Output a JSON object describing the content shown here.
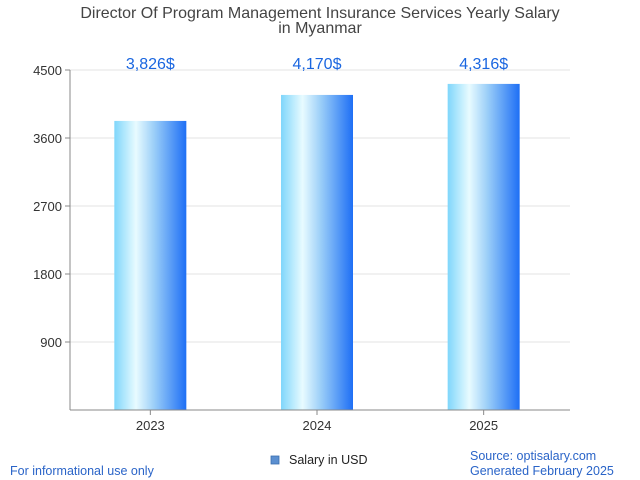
{
  "chart_data": {
    "type": "bar",
    "title_lines": [
      "Director Of Program Management Insurance Services Yearly Salary",
      "in Myanmar"
    ],
    "categories": [
      "2023",
      "2024",
      "2025"
    ],
    "series": [
      {
        "name": "Salary in USD",
        "values": [
          3826,
          4170,
          4316
        ]
      }
    ],
    "value_labels": [
      "3,826$",
      "4,170$",
      "4,316$"
    ],
    "yticks": [
      900,
      1800,
      2700,
      3600,
      4500
    ],
    "ylim": [
      0,
      4500
    ],
    "grid": true,
    "legend_position": "bottom-center",
    "colors": {
      "bar_light": "#e8fbff",
      "bar_mid": "#7fd6fb",
      "bar_dark": "#1e6ff5",
      "value_label": "#1a66e0",
      "legend_swatch": "#5b8fd0"
    }
  },
  "footer": {
    "left_note": "For informational use only",
    "source": "Source: optisalary.com",
    "generated": "Generated February 2025"
  }
}
